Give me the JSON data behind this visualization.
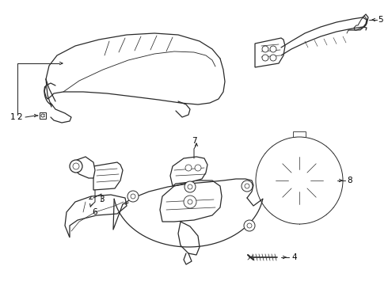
{
  "bg_color": "#ffffff",
  "line_color": "#2a2a2a",
  "label_color": "#000000",
  "lw": 0.9
}
